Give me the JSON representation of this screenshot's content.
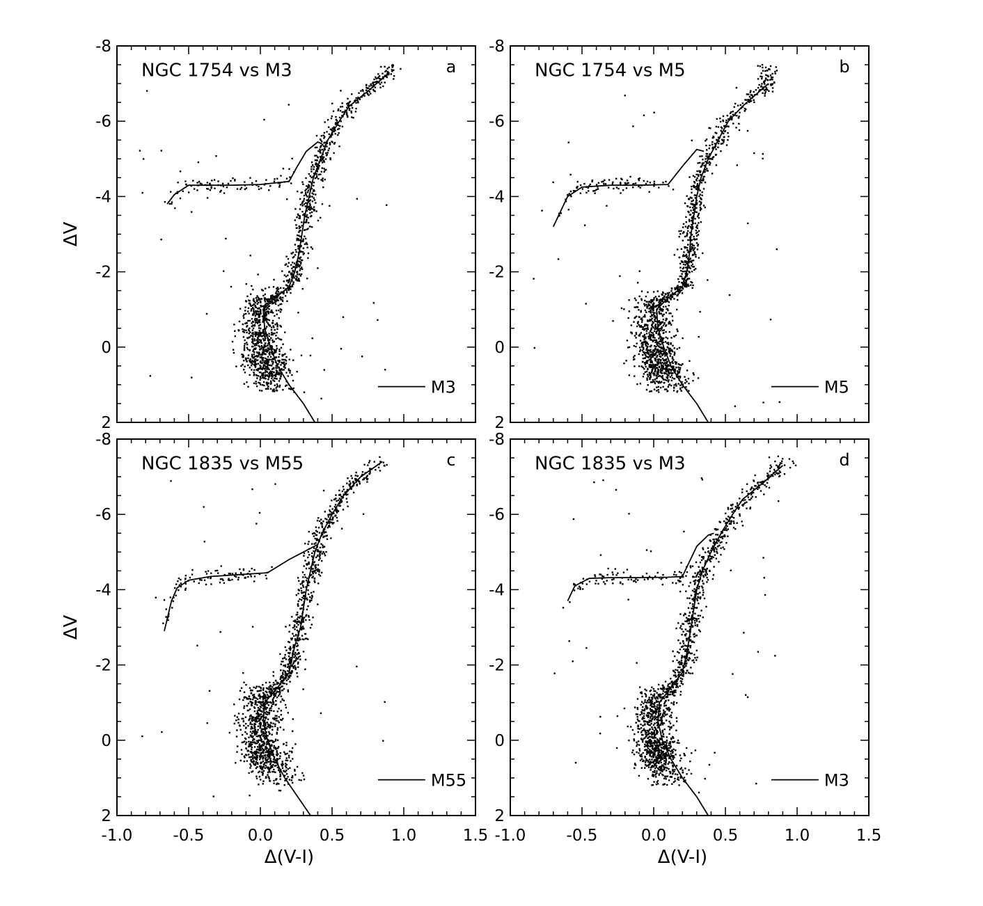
{
  "figure": {
    "background": "#ffffff",
    "ink": "#000000"
  },
  "chart_data": [
    {
      "type": "scatter",
      "panel": "a",
      "title": "NGC 1754 vs M3",
      "xlabel": "",
      "ylabel": "ΔV",
      "xlim": [
        -1.0,
        1.5
      ],
      "ylim": [
        2,
        -8
      ],
      "legend": {
        "label": "M3",
        "position": "bottom-right"
      },
      "fiducial": [
        [
          -0.65,
          -3.8
        ],
        [
          -0.6,
          -4.05
        ],
        [
          -0.5,
          -4.3
        ],
        [
          -0.35,
          -4.3
        ],
        [
          -0.2,
          -4.3
        ],
        [
          0.0,
          -4.32
        ],
        [
          0.2,
          -4.4
        ],
        [
          0.25,
          -4.75
        ],
        [
          0.32,
          -5.2
        ],
        [
          0.4,
          -5.45
        ],
        [
          0.43,
          -5.4
        ]
      ],
      "rgb": [
        [
          0.38,
          2.0
        ],
        [
          0.3,
          1.5
        ],
        [
          0.2,
          1.0
        ],
        [
          0.12,
          0.5
        ],
        [
          0.07,
          0.0
        ],
        [
          0.03,
          -0.5
        ],
        [
          0.02,
          -1.0
        ],
        [
          0.1,
          -1.3
        ],
        [
          0.2,
          -1.6
        ],
        [
          0.24,
          -2.0
        ],
        [
          0.27,
          -2.5
        ],
        [
          0.29,
          -3.0
        ],
        [
          0.31,
          -3.5
        ],
        [
          0.34,
          -4.0
        ],
        [
          0.37,
          -4.5
        ],
        [
          0.42,
          -5.0
        ],
        [
          0.47,
          -5.5
        ],
        [
          0.55,
          -6.0
        ],
        [
          0.62,
          -6.4
        ],
        [
          0.75,
          -6.8
        ],
        [
          0.9,
          -7.3
        ]
      ]
    },
    {
      "type": "scatter",
      "panel": "b",
      "title": "NGC 1754 vs M5",
      "xlabel": "",
      "ylabel": "",
      "xlim": [
        -1.0,
        1.5
      ],
      "ylim": [
        2,
        -8
      ],
      "legend": {
        "label": "M5",
        "position": "bottom-right"
      },
      "fiducial": [
        [
          -0.7,
          -3.2
        ],
        [
          -0.65,
          -3.6
        ],
        [
          -0.6,
          -4.0
        ],
        [
          -0.5,
          -4.25
        ],
        [
          -0.3,
          -4.3
        ],
        [
          -0.1,
          -4.3
        ],
        [
          0.1,
          -4.32
        ],
        [
          0.2,
          -4.8
        ],
        [
          0.3,
          -5.25
        ],
        [
          0.35,
          -5.2
        ]
      ],
      "rgb": [
        [
          0.38,
          2.0
        ],
        [
          0.3,
          1.5
        ],
        [
          0.2,
          1.0
        ],
        [
          0.12,
          0.5
        ],
        [
          0.07,
          0.0
        ],
        [
          0.03,
          -0.5
        ],
        [
          0.02,
          -1.0
        ],
        [
          0.1,
          -1.3
        ],
        [
          0.2,
          -1.6
        ],
        [
          0.23,
          -2.0
        ],
        [
          0.25,
          -2.5
        ],
        [
          0.26,
          -3.0
        ],
        [
          0.28,
          -3.5
        ],
        [
          0.3,
          -4.0
        ],
        [
          0.33,
          -4.5
        ],
        [
          0.38,
          -5.0
        ],
        [
          0.45,
          -5.5
        ],
        [
          0.52,
          -6.0
        ],
        [
          0.62,
          -6.4
        ],
        [
          0.8,
          -7.0
        ]
      ]
    },
    {
      "type": "scatter",
      "panel": "c",
      "title": "NGC 1835 vs M55",
      "xlabel": "Δ(V-I)",
      "ylabel": "ΔV",
      "xlim": [
        -1.0,
        1.5
      ],
      "ylim": [
        2,
        -8
      ],
      "legend": {
        "label": "M55",
        "position": "bottom-right"
      },
      "fiducial": [
        [
          -0.67,
          -2.9
        ],
        [
          -0.62,
          -3.7
        ],
        [
          -0.58,
          -4.05
        ],
        [
          -0.5,
          -4.25
        ],
        [
          -0.35,
          -4.35
        ],
        [
          -0.15,
          -4.4
        ],
        [
          0.05,
          -4.45
        ],
        [
          0.2,
          -4.8
        ],
        [
          0.35,
          -5.1
        ],
        [
          0.4,
          -5.2
        ]
      ],
      "rgb": [
        [
          0.35,
          2.0
        ],
        [
          0.26,
          1.5
        ],
        [
          0.17,
          1.0
        ],
        [
          0.1,
          0.5
        ],
        [
          0.05,
          0.0
        ],
        [
          0.02,
          -0.5
        ],
        [
          0.03,
          -1.0
        ],
        [
          0.12,
          -1.4
        ],
        [
          0.2,
          -1.8
        ],
        [
          0.24,
          -2.5
        ],
        [
          0.28,
          -3.0
        ],
        [
          0.3,
          -3.5
        ],
        [
          0.32,
          -4.0
        ],
        [
          0.35,
          -4.5
        ],
        [
          0.38,
          -5.0
        ],
        [
          0.43,
          -5.5
        ],
        [
          0.5,
          -6.0
        ],
        [
          0.58,
          -6.5
        ],
        [
          0.7,
          -7.0
        ],
        [
          0.85,
          -7.4
        ]
      ]
    },
    {
      "type": "scatter",
      "panel": "d",
      "title": "NGC 1835 vs M3",
      "xlabel": "Δ(V-I)",
      "ylabel": "",
      "xlim": [
        -1.0,
        1.5
      ],
      "ylim": [
        2,
        -8
      ],
      "legend": {
        "label": "M3",
        "position": "bottom-right"
      },
      "fiducial": [
        [
          -0.6,
          -3.7
        ],
        [
          -0.55,
          -4.1
        ],
        [
          -0.45,
          -4.3
        ],
        [
          -0.3,
          -4.32
        ],
        [
          -0.1,
          -4.32
        ],
        [
          0.1,
          -4.33
        ],
        [
          0.2,
          -4.35
        ],
        [
          0.25,
          -4.75
        ],
        [
          0.3,
          -5.15
        ],
        [
          0.38,
          -5.45
        ],
        [
          0.42,
          -5.5
        ]
      ],
      "rgb": [
        [
          0.38,
          2.0
        ],
        [
          0.3,
          1.5
        ],
        [
          0.2,
          1.0
        ],
        [
          0.12,
          0.5
        ],
        [
          0.06,
          0.0
        ],
        [
          0.03,
          -0.5
        ],
        [
          0.04,
          -1.0
        ],
        [
          0.12,
          -1.4
        ],
        [
          0.2,
          -1.8
        ],
        [
          0.23,
          -2.3
        ],
        [
          0.26,
          -3.0
        ],
        [
          0.28,
          -3.5
        ],
        [
          0.3,
          -4.0
        ],
        [
          0.34,
          -4.5
        ],
        [
          0.4,
          -5.0
        ],
        [
          0.47,
          -5.5
        ],
        [
          0.55,
          -6.0
        ],
        [
          0.62,
          -6.4
        ],
        [
          0.75,
          -6.8
        ],
        [
          0.9,
          -7.3
        ]
      ]
    }
  ],
  "axes": {
    "x_ticks": [
      -1.0,
      -0.5,
      0.0,
      0.5,
      1.0,
      1.5
    ],
    "x_tick_labels": [
      "-1.0",
      "-0.5",
      "0.0",
      "0.5",
      "1.0",
      "1.5"
    ],
    "y_ticks": [
      -8,
      -6,
      -4,
      -2,
      0,
      2
    ],
    "y_tick_labels": [
      "-8",
      "-6",
      "-4",
      "-2",
      "0",
      "2"
    ]
  }
}
